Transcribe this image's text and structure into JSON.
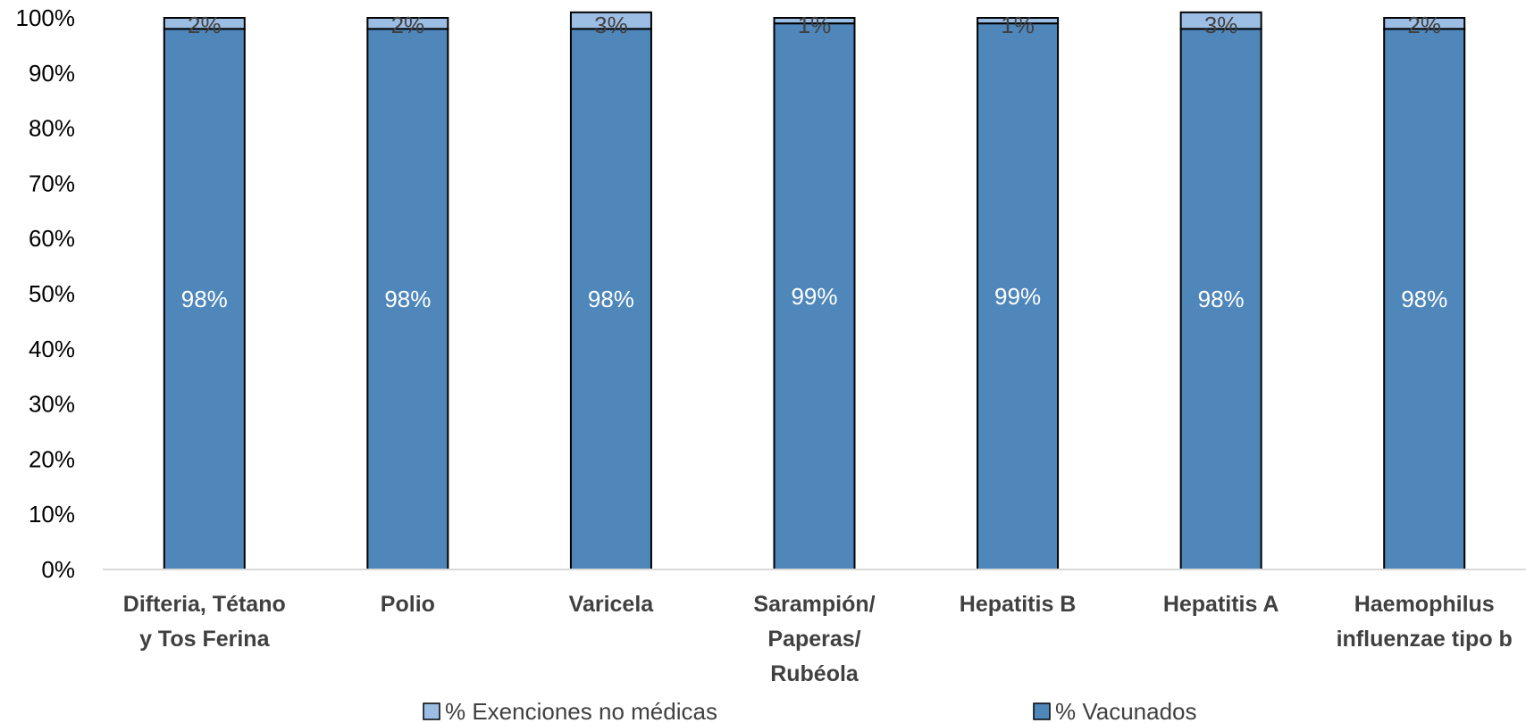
{
  "chart_data": {
    "type": "bar",
    "stacked": true,
    "categories": [
      [
        "Difteria, Tétano",
        "y Tos Ferina"
      ],
      [
        "Polio"
      ],
      [
        "Varicela"
      ],
      [
        "Sarampión/",
        "Paperas/",
        "Rubéola"
      ],
      [
        "Hepatitis B"
      ],
      [
        "Hepatitis A"
      ],
      [
        "Haemophilus",
        "influenzae tipo b"
      ]
    ],
    "series": [
      {
        "name": "% Vacunados",
        "values": [
          98,
          98,
          98,
          99,
          99,
          98,
          98
        ],
        "labels": [
          "98%",
          "98%",
          "98%",
          "99%",
          "99%",
          "98%",
          "98%"
        ],
        "color": "#4F87BB"
      },
      {
        "name": "% Exenciones no médicas",
        "values": [
          2,
          2,
          3,
          1,
          1,
          3,
          2
        ],
        "labels": [
          "2%",
          "2%",
          "3%",
          "1%",
          "1%",
          "3%",
          "2%"
        ],
        "color": "#9DBEE4"
      }
    ],
    "ylim": [
      0,
      100
    ],
    "yticks": [
      "0%",
      "10%",
      "20%",
      "30%",
      "40%",
      "50%",
      "60%",
      "70%",
      "80%",
      "90%",
      "100%"
    ],
    "legend": [
      "% Exenciones no médicas",
      "% Vacunados"
    ],
    "legend_position": "bottom",
    "grid": false
  }
}
